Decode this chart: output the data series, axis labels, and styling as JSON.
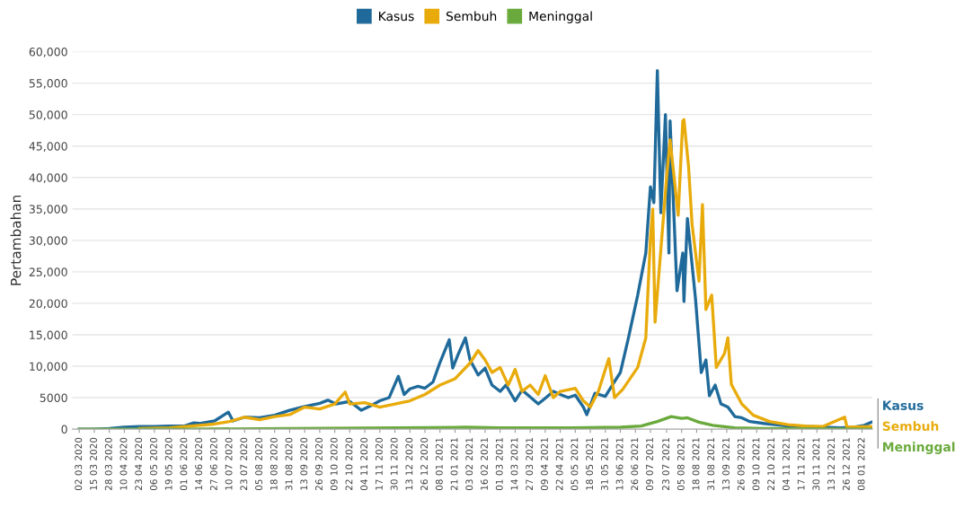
{
  "chart_data": {
    "type": "line",
    "ylabel": "Pertambahan",
    "legend": "top",
    "grid": "y",
    "marker": "none",
    "line_style": "solid",
    "xlim": [
      "2020-02-25",
      "2022-01-17"
    ],
    "ylim": [
      0,
      60000
    ],
    "yticks": [
      0,
      5000,
      {
        "value": 10000,
        "label": "10,000"
      },
      {
        "value": 15000,
        "label": "15,000"
      },
      {
        "value": 20000,
        "label": "20,000"
      },
      {
        "value": 25000,
        "label": "25,000"
      },
      {
        "value": 30000,
        "label": "30,000"
      },
      {
        "value": 35000,
        "label": "35,000"
      },
      {
        "value": 40000,
        "label": "40,000"
      },
      {
        "value": 45000,
        "label": "45,000"
      },
      {
        "value": 50000,
        "label": "50,000"
      },
      {
        "value": 55000,
        "label": "55,000"
      },
      {
        "value": 60000,
        "label": "60,000"
      }
    ],
    "xticks": [
      {
        "value": "2020-03-02",
        "label": "02 03 2020"
      },
      {
        "value": "2020-03-15",
        "label": "15 03 2020"
      },
      {
        "value": "2020-03-28",
        "label": "28 03 2020"
      },
      {
        "value": "2020-04-10",
        "label": "10 04 2020"
      },
      {
        "value": "2020-04-23",
        "label": "23 04 2020"
      },
      {
        "value": "2020-05-06",
        "label": "06 05 2020"
      },
      {
        "value": "2020-05-19",
        "label": "19 05 2020"
      },
      {
        "value": "2020-06-01",
        "label": "01 06 2020"
      },
      {
        "value": "2020-06-14",
        "label": "14 06 2020"
      },
      {
        "value": "2020-06-27",
        "label": "27 06 2020"
      },
      {
        "value": "2020-07-10",
        "label": "10 07 2020"
      },
      {
        "value": "2020-07-23",
        "label": "23 07 2020"
      },
      {
        "value": "2020-08-05",
        "label": "05 08 2020"
      },
      {
        "value": "2020-08-18",
        "label": "18 08 2020"
      },
      {
        "value": "2020-08-31",
        "label": "31 08 2020"
      },
      {
        "value": "2020-09-13",
        "label": "13 09 2020"
      },
      {
        "value": "2020-09-26",
        "label": "26 09 2020"
      },
      {
        "value": "2020-10-09",
        "label": "09 10 2020"
      },
      {
        "value": "2020-10-22",
        "label": "22 10 2020"
      },
      {
        "value": "2020-11-04",
        "label": "04 11 2020"
      },
      {
        "value": "2020-11-17",
        "label": "17 11 2020"
      },
      {
        "value": "2020-11-30",
        "label": "30 11 2020"
      },
      {
        "value": "2020-12-13",
        "label": "13 12 2020"
      },
      {
        "value": "2020-12-26",
        "label": "26 12 2020"
      },
      {
        "value": "2021-01-08",
        "label": "08 01 2021"
      },
      {
        "value": "2021-01-21",
        "label": "21 01 2021"
      },
      {
        "value": "2021-02-03",
        "label": "03 02 2021"
      },
      {
        "value": "2021-02-16",
        "label": "16 02 2021"
      },
      {
        "value": "2021-03-01",
        "label": "01 03 2021"
      },
      {
        "value": "2021-03-14",
        "label": "14 03 2021"
      },
      {
        "value": "2021-03-27",
        "label": "27 03 2021"
      },
      {
        "value": "2021-04-09",
        "label": "09 04 2021"
      },
      {
        "value": "2021-04-22",
        "label": "22 04 2021"
      },
      {
        "value": "2021-05-05",
        "label": "05 05 2021"
      },
      {
        "value": "2021-05-18",
        "label": "18 05 2021"
      },
      {
        "value": "2021-05-31",
        "label": "31 05 2021"
      },
      {
        "value": "2021-06-13",
        "label": "13 06 2021"
      },
      {
        "value": "2021-06-26",
        "label": "26 06 2021"
      },
      {
        "value": "2021-07-09",
        "label": "09 07 2021"
      },
      {
        "value": "2021-07-23",
        "label": "23 07 2021"
      },
      {
        "value": "2021-08-05",
        "label": "05 08 2021"
      },
      {
        "value": "2021-08-18",
        "label": "18 08 2021"
      },
      {
        "value": "2021-08-31",
        "label": "31 08 2021"
      },
      {
        "value": "2021-09-13",
        "label": "13 09 2021"
      },
      {
        "value": "2021-09-26",
        "label": "26 09 2021"
      },
      {
        "value": "2021-10-09",
        "label": "09 10 2021"
      },
      {
        "value": "2021-10-22",
        "label": "22 10 2021"
      },
      {
        "value": "2021-11-04",
        "label": "04 11 2021"
      },
      {
        "value": "2021-11-17",
        "label": "17 11 2021"
      },
      {
        "value": "2021-11-30",
        "label": "30 11 2021"
      },
      {
        "value": "2021-12-13",
        "label": "13 12 2021"
      },
      {
        "value": "2021-12-26",
        "label": "26 12 2021"
      },
      {
        "value": "2022-01-08",
        "label": "08 01 2022"
      }
    ],
    "series": [
      {
        "name": "Kasus",
        "color": "#1f6a9a",
        "x": [
          "2020-03-02",
          "2020-03-15",
          "2020-03-28",
          "2020-04-10",
          "2020-04-23",
          "2020-05-06",
          "2020-05-19",
          "2020-06-01",
          "2020-06-09",
          "2020-06-14",
          "2020-06-27",
          "2020-07-09",
          "2020-07-13",
          "2020-07-23",
          "2020-08-05",
          "2020-08-18",
          "2020-08-31",
          "2020-09-13",
          "2020-09-26",
          "2020-10-03",
          "2020-10-10",
          "2020-10-22",
          "2020-11-01",
          "2020-11-10",
          "2020-11-17",
          "2020-11-25",
          "2020-12-03",
          "2020-12-08",
          "2020-12-13",
          "2020-12-20",
          "2020-12-26",
          "2021-01-02",
          "2021-01-08",
          "2021-01-16",
          "2021-01-19",
          "2021-01-24",
          "2021-01-30",
          "2021-02-03",
          "2021-02-10",
          "2021-02-16",
          "2021-02-22",
          "2021-03-01",
          "2021-03-06",
          "2021-03-14",
          "2021-03-20",
          "2021-03-27",
          "2021-04-03",
          "2021-04-09",
          "2021-04-16",
          "2021-04-22",
          "2021-04-29",
          "2021-05-05",
          "2021-05-12",
          "2021-05-15",
          "2021-05-22",
          "2021-05-31",
          "2021-06-06",
          "2021-06-13",
          "2021-06-20",
          "2021-06-28",
          "2021-07-05",
          "2021-07-09",
          "2021-07-12",
          "2021-07-15",
          "2021-07-18",
          "2021-07-22",
          "2021-07-25",
          "2021-07-26",
          "2021-08-01",
          "2021-08-06",
          "2021-08-07",
          "2021-08-10",
          "2021-08-17",
          "2021-08-22",
          "2021-08-26",
          "2021-08-29",
          "2021-09-03",
          "2021-09-08",
          "2021-09-14",
          "2021-09-20",
          "2021-09-26",
          "2021-10-03",
          "2021-10-15",
          "2021-10-25",
          "2021-11-05",
          "2021-11-20",
          "2021-12-05",
          "2021-12-20",
          "2022-01-01",
          "2022-01-10",
          "2022-01-16"
        ],
        "values": [
          0,
          0,
          100,
          300,
          400,
          400,
          500,
          500,
          1000,
          900,
          1300,
          2700,
          1300,
          1900,
          1800,
          2200,
          3000,
          3600,
          4100,
          4600,
          4000,
          4400,
          3000,
          3800,
          4500,
          5000,
          8400,
          5500,
          6400,
          6800,
          6500,
          7500,
          10600,
          14200,
          9700,
          12000,
          14500,
          11000,
          8600,
          9700,
          7000,
          6000,
          7000,
          4500,
          6200,
          5100,
          4000,
          4900,
          6000,
          5500,
          5000,
          5400,
          3500,
          2300,
          5700,
          5200,
          7000,
          9000,
          14500,
          21300,
          28000,
          38500,
          36000,
          57000,
          34400,
          50000,
          28000,
          49000,
          22000,
          28000,
          20300,
          33500,
          20700,
          9000,
          11000,
          5300,
          7000,
          4000,
          3500,
          2000,
          1800,
          1200,
          900,
          700,
          500,
          400,
          300,
          200,
          300,
          600,
          1100
        ]
      },
      {
        "name": "Sembuh",
        "color": "#e8ab0b",
        "x": [
          "2020-04-23",
          "2020-05-19",
          "2020-06-14",
          "2020-06-27",
          "2020-07-10",
          "2020-07-23",
          "2020-08-05",
          "2020-08-18",
          "2020-08-31",
          "2020-09-13",
          "2020-09-26",
          "2020-10-09",
          "2020-10-18",
          "2020-10-22",
          "2020-11-04",
          "2020-11-17",
          "2020-11-30",
          "2020-12-13",
          "2020-12-26",
          "2021-01-08",
          "2021-01-21",
          "2021-02-03",
          "2021-02-10",
          "2021-02-16",
          "2021-02-22",
          "2021-03-01",
          "2021-03-08",
          "2021-03-14",
          "2021-03-20",
          "2021-03-27",
          "2021-04-03",
          "2021-04-09",
          "2021-04-16",
          "2021-04-22",
          "2021-05-05",
          "2021-05-12",
          "2021-05-18",
          "2021-05-25",
          "2021-06-03",
          "2021-06-08",
          "2021-06-15",
          "2021-06-28",
          "2021-07-05",
          "2021-07-09",
          "2021-07-11",
          "2021-07-13",
          "2021-07-23",
          "2021-07-26",
          "2021-08-02",
          "2021-08-06",
          "2021-08-07",
          "2021-08-11",
          "2021-08-14",
          "2021-08-20",
          "2021-08-23",
          "2021-08-26",
          "2021-08-31",
          "2021-09-04",
          "2021-09-11",
          "2021-09-14",
          "2021-09-17",
          "2021-09-26",
          "2021-10-06",
          "2021-10-20",
          "2021-11-05",
          "2021-11-20",
          "2021-12-05",
          "2021-12-24",
          "2021-12-26",
          "2022-01-16"
        ],
        "values": [
          100,
          200,
          600,
          800,
          1200,
          1900,
          1500,
          2000,
          2300,
          3500,
          3200,
          4000,
          5900,
          4000,
          4200,
          3500,
          4000,
          4500,
          5500,
          7000,
          8000,
          10500,
          12500,
          11000,
          9000,
          9800,
          7000,
          9500,
          6000,
          7000,
          5500,
          8500,
          5000,
          6000,
          6500,
          4500,
          3500,
          6000,
          11200,
          5000,
          6300,
          9800,
          14500,
          30300,
          35000,
          17000,
          40000,
          46000,
          34000,
          49000,
          49200,
          41700,
          32600,
          23500,
          35700,
          19000,
          21300,
          9800,
          12000,
          14500,
          7100,
          4000,
          2200,
          1200,
          700,
          500,
          400,
          1900,
          300,
          400
        ]
      },
      {
        "name": "Meninggal",
        "color": "#6aaa3c",
        "x": [
          "2020-03-02",
          "2020-06-01",
          "2020-09-01",
          "2020-12-01",
          "2021-01-30",
          "2021-03-01",
          "2021-05-01",
          "2021-06-13",
          "2021-07-01",
          "2021-07-15",
          "2021-07-27",
          "2021-08-05",
          "2021-08-10",
          "2021-08-20",
          "2021-09-01",
          "2021-09-20",
          "2021-10-15",
          "2022-01-16"
        ],
        "values": [
          0,
          0,
          100,
          200,
          300,
          200,
          200,
          300,
          500,
          1200,
          2000,
          1700,
          1800,
          1100,
          600,
          200,
          100,
          0
        ]
      }
    ]
  }
}
